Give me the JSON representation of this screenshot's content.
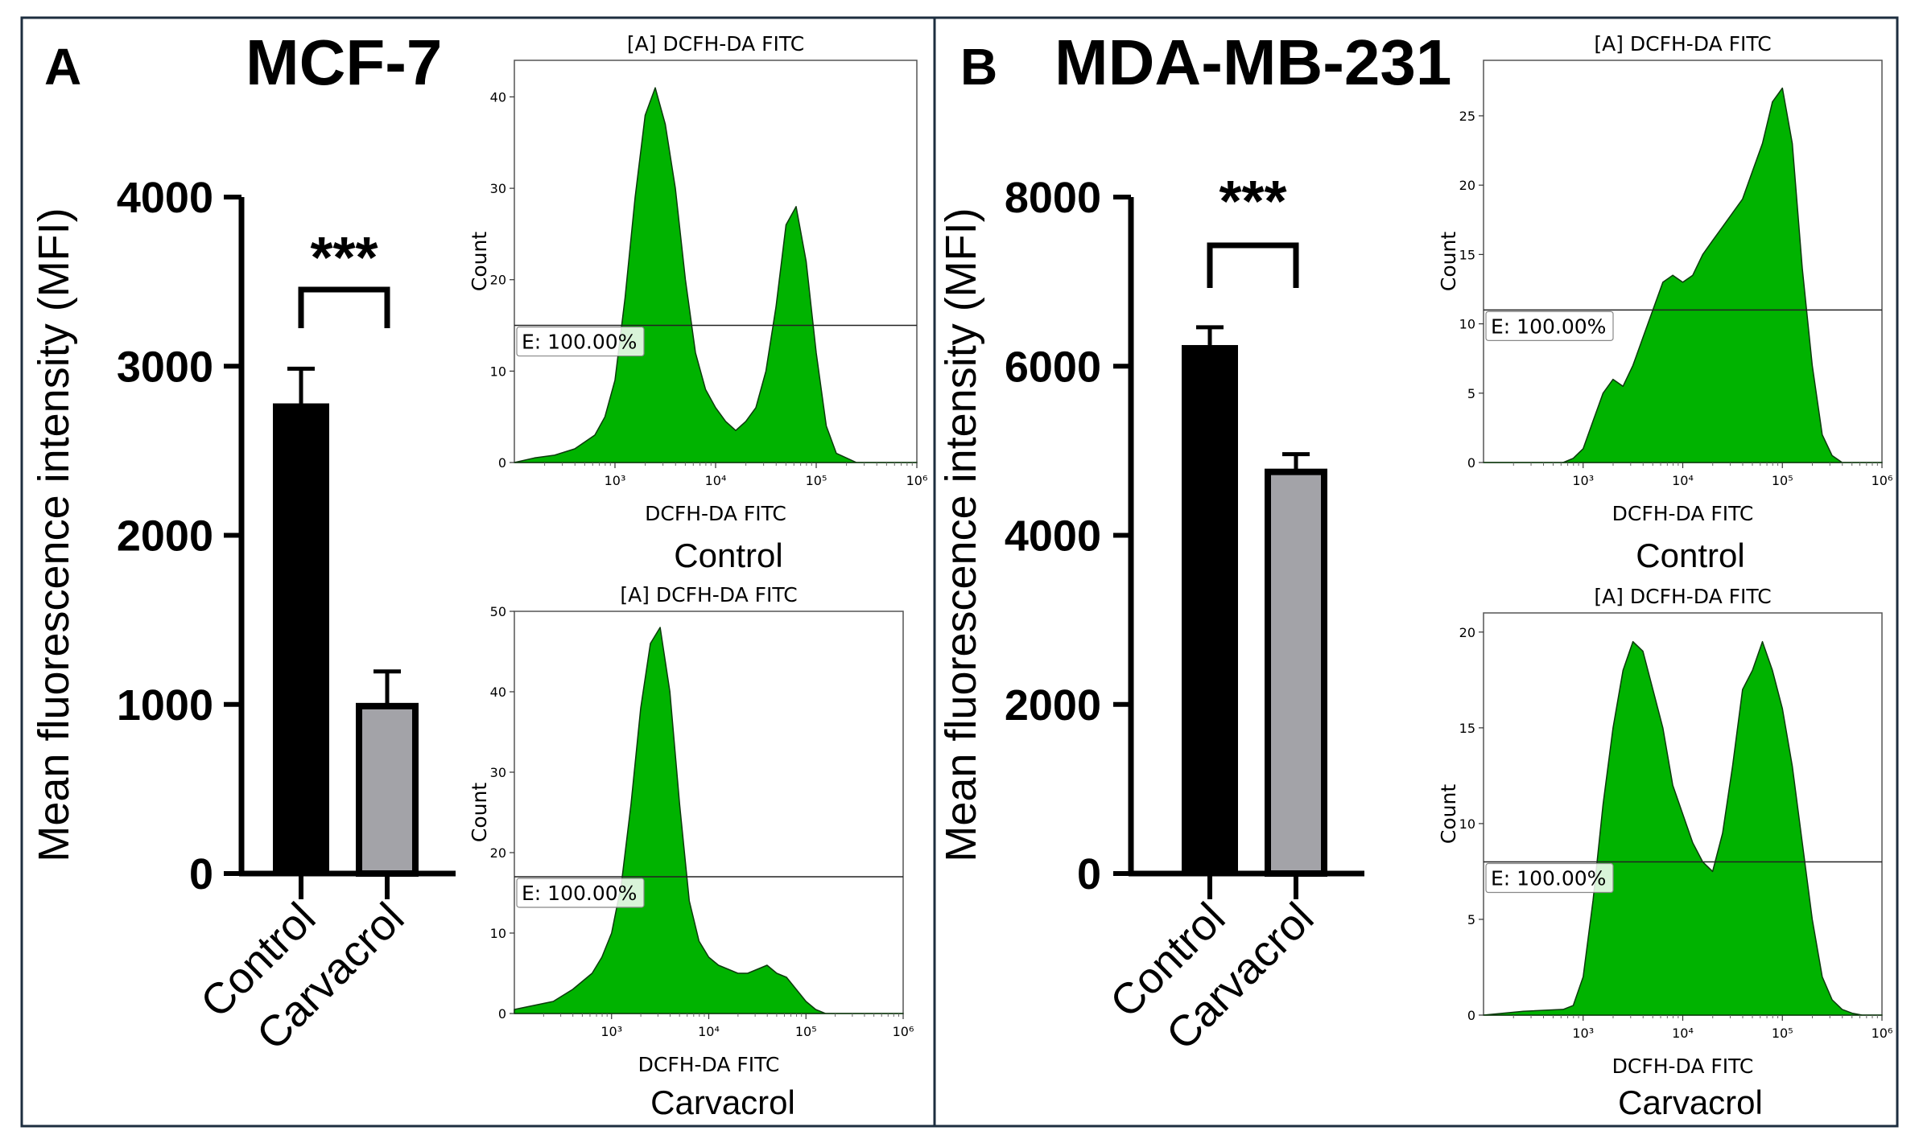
{
  "panels": [
    {
      "letter": "A",
      "title": "MCF-7",
      "bar_chart": {
        "type": "bar",
        "ylabel": "Mean fluorescence intensity (MFI)",
        "yticks": [
          0,
          1000,
          2000,
          3000,
          4000
        ],
        "ylim": [
          0,
          4000
        ],
        "categories": [
          "Control",
          "Carvacrol"
        ],
        "values": [
          2780,
          990
        ],
        "errors": [
          205,
          205
        ],
        "colors": [
          "#000000",
          "#a3a3a8"
        ],
        "significance": "***"
      },
      "histograms": [
        {
          "type": "area",
          "title": "[A] DCFH-DA FITC",
          "xlabel": "DCFH-DA FITC",
          "ylabel": "Count",
          "condition": "Control",
          "gate_label": "E: 100.00%",
          "gate_level": 15,
          "ylim": [
            0,
            44
          ],
          "yticks": [
            0,
            10,
            20,
            30,
            40
          ],
          "xlim_log10": [
            2,
            6
          ],
          "xticks_log10": [
            3,
            4,
            5,
            6
          ],
          "x_log10": [
            2.0,
            2.2,
            2.4,
            2.6,
            2.8,
            2.9,
            3.0,
            3.1,
            3.2,
            3.3,
            3.4,
            3.5,
            3.6,
            3.7,
            3.8,
            3.9,
            4.0,
            4.1,
            4.2,
            4.3,
            4.4,
            4.5,
            4.6,
            4.7,
            4.8,
            4.9,
            5.0,
            5.1,
            5.2,
            5.3,
            5.4,
            5.6,
            5.8,
            6.0
          ],
          "counts": [
            0,
            0.5,
            0.8,
            1.5,
            3,
            5,
            9,
            18,
            29,
            38,
            41,
            37,
            30,
            20,
            12,
            8,
            6,
            4.5,
            3.5,
            4.5,
            6,
            10,
            17,
            26,
            28,
            22,
            12,
            4,
            1,
            0.5,
            0,
            0,
            0,
            0
          ]
        },
        {
          "type": "area",
          "title": "[A] DCFH-DA FITC",
          "xlabel": "DCFH-DA FITC",
          "ylabel": "Count",
          "condition": "Carvacrol",
          "gate_label": "E: 100.00%",
          "gate_level": 17,
          "ylim": [
            0,
            50
          ],
          "yticks": [
            0,
            10,
            20,
            30,
            40,
            50
          ],
          "xlim_log10": [
            2,
            6
          ],
          "xticks_log10": [
            3,
            4,
            5,
            6
          ],
          "x_log10": [
            2.0,
            2.2,
            2.4,
            2.6,
            2.8,
            2.9,
            3.0,
            3.1,
            3.2,
            3.3,
            3.4,
            3.5,
            3.6,
            3.7,
            3.8,
            3.9,
            4.0,
            4.1,
            4.2,
            4.3,
            4.4,
            4.5,
            4.6,
            4.7,
            4.8,
            4.9,
            5.0,
            5.1,
            5.2,
            5.4,
            5.6,
            5.8,
            6.0
          ],
          "counts": [
            0.5,
            1,
            1.5,
            3,
            5,
            7,
            10,
            16,
            26,
            38,
            46,
            48,
            40,
            26,
            14,
            9,
            7,
            6,
            5.5,
            5,
            5,
            5.5,
            6,
            5,
            4.5,
            3,
            1.5,
            0.5,
            0,
            0,
            0,
            0,
            0
          ]
        }
      ]
    },
    {
      "letter": "B",
      "title": "MDA-MB-231",
      "bar_chart": {
        "type": "bar",
        "ylabel": "Mean fluorescence intensity (MFI)",
        "yticks": [
          0,
          2000,
          4000,
          6000,
          8000
        ],
        "ylim": [
          0,
          8000
        ],
        "categories": [
          "Control",
          "Carvacrol"
        ],
        "values": [
          6250,
          4750
        ],
        "errors": [
          210,
          210
        ],
        "colors": [
          "#000000",
          "#a3a3a8"
        ],
        "significance": "***"
      },
      "histograms": [
        {
          "type": "area",
          "title": "[A] DCFH-DA FITC",
          "xlabel": "DCFH-DA FITC",
          "ylabel": "Count",
          "condition": "Control",
          "gate_label": "E: 100.00%",
          "gate_level": 11,
          "ylim": [
            0,
            29
          ],
          "yticks": [
            0,
            5,
            10,
            15,
            20,
            25
          ],
          "xlim_log10": [
            2,
            6
          ],
          "xticks_log10": [
            3,
            4,
            5,
            6
          ],
          "x_log10": [
            2.0,
            2.4,
            2.8,
            2.9,
            3.0,
            3.1,
            3.2,
            3.3,
            3.4,
            3.5,
            3.6,
            3.7,
            3.8,
            3.9,
            4.0,
            4.1,
            4.2,
            4.3,
            4.4,
            4.5,
            4.6,
            4.7,
            4.8,
            4.9,
            5.0,
            5.1,
            5.2,
            5.3,
            5.4,
            5.5,
            5.6,
            5.8,
            6.0
          ],
          "counts": [
            0,
            0,
            0,
            0.3,
            1,
            3,
            5,
            6,
            5.5,
            7,
            9,
            11,
            13,
            13.5,
            13,
            13.5,
            15,
            16,
            17,
            18,
            19,
            21,
            23,
            26,
            27,
            23,
            14,
            7,
            2,
            0.5,
            0,
            0,
            0
          ]
        },
        {
          "type": "area",
          "title": "[A] DCFH-DA FITC",
          "xlabel": "DCFH-DA FITC",
          "ylabel": "Count",
          "condition": "Carvacrol",
          "gate_label": "E: 100.00%",
          "gate_level": 8,
          "ylim": [
            0,
            21
          ],
          "yticks": [
            0,
            5,
            10,
            15,
            20
          ],
          "xlim_log10": [
            2,
            6
          ],
          "xticks_log10": [
            3,
            4,
            5,
            6
          ],
          "x_log10": [
            2.0,
            2.4,
            2.8,
            2.9,
            3.0,
            3.1,
            3.2,
            3.3,
            3.4,
            3.5,
            3.6,
            3.7,
            3.8,
            3.9,
            4.0,
            4.1,
            4.2,
            4.3,
            4.4,
            4.5,
            4.6,
            4.7,
            4.8,
            4.9,
            5.0,
            5.1,
            5.2,
            5.3,
            5.4,
            5.5,
            5.6,
            5.7,
            5.8,
            6.0
          ],
          "counts": [
            0,
            0.2,
            0.3,
            0.5,
            2,
            6,
            11,
            15,
            18,
            19.5,
            19,
            17,
            15,
            12,
            10.5,
            9,
            8,
            7.5,
            9.5,
            13,
            17,
            18,
            19.5,
            18,
            16,
            13,
            9,
            5,
            2,
            0.8,
            0.3,
            0.1,
            0,
            0
          ]
        }
      ]
    }
  ]
}
